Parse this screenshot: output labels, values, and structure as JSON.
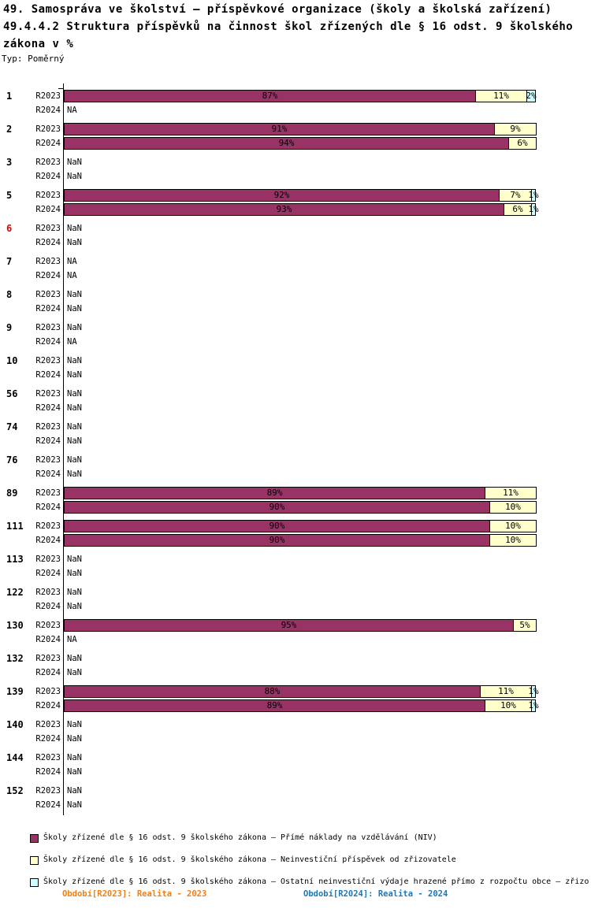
{
  "header": {
    "title_line1": "49. Samospráva ve školství – příspěvkové organizace (školy a školská zařízení)",
    "title_line2": "49.4.4.2 Struktura příspěvků na činnost škol zřízených dle § 16 odst. 9 školského",
    "title_line3": " zákona v %",
    "type_label": "Typ: Poměrný"
  },
  "chart_data": {
    "type": "bar",
    "orientation": "horizontal",
    "stacked": true,
    "value_unit": "%",
    "xlim": [
      0,
      100
    ],
    "grid": false,
    "period_labels": [
      "R2023",
      "R2024"
    ],
    "series": [
      {
        "name": "Školy zřízené dle § 16 odst. 9 školského zákona – Přímé náklady na vzdělávání (NIV)",
        "color": "#993366"
      },
      {
        "name": "Školy zřízené dle § 16 odst. 9 školského zákona – Neinvestiční příspěvek od zřizovatele",
        "color": "#FFFFCC"
      },
      {
        "name": "Školy zřízené dle § 16 odst. 9 školského zákona – Ostatní neinvestiční výdaje hrazené přímo z rozpočtu obce – zřizovatele",
        "color": "#CCFFFF"
      }
    ],
    "groups": [
      {
        "id": "1",
        "id_color": "#000000",
        "rows": [
          {
            "period": "R2023",
            "segments": [
              {
                "series": 0,
                "value": 87,
                "label": "87%"
              },
              {
                "series": 1,
                "value": 11,
                "label": "11%"
              },
              {
                "series": 2,
                "value": 2,
                "label": "2%"
              }
            ]
          },
          {
            "period": "R2024",
            "text": "NA"
          }
        ]
      },
      {
        "id": "2",
        "id_color": "#000000",
        "rows": [
          {
            "period": "R2023",
            "segments": [
              {
                "series": 0,
                "value": 91,
                "label": "91%"
              },
              {
                "series": 1,
                "value": 9,
                "label": "9%"
              }
            ]
          },
          {
            "period": "R2024",
            "segments": [
              {
                "series": 0,
                "value": 94,
                "label": "94%"
              },
              {
                "series": 1,
                "value": 6,
                "label": "6%"
              }
            ]
          }
        ]
      },
      {
        "id": "3",
        "id_color": "#000000",
        "rows": [
          {
            "period": "R2023",
            "text": "NaN"
          },
          {
            "period": "R2024",
            "text": "NaN"
          }
        ]
      },
      {
        "id": "5",
        "id_color": "#000000",
        "rows": [
          {
            "period": "R2023",
            "segments": [
              {
                "series": 0,
                "value": 92,
                "label": "92%"
              },
              {
                "series": 1,
                "value": 7,
                "label": "7%"
              },
              {
                "series": 2,
                "value": 1,
                "label": "1%"
              }
            ]
          },
          {
            "period": "R2024",
            "segments": [
              {
                "series": 0,
                "value": 93,
                "label": "93%"
              },
              {
                "series": 1,
                "value": 6,
                "label": "6%"
              },
              {
                "series": 2,
                "value": 1,
                "label": "1%"
              }
            ]
          }
        ]
      },
      {
        "id": "6",
        "id_color": "#E60000",
        "rows": [
          {
            "period": "R2023",
            "text": "NaN"
          },
          {
            "period": "R2024",
            "text": "NaN"
          }
        ]
      },
      {
        "id": "7",
        "id_color": "#000000",
        "rows": [
          {
            "period": "R2023",
            "text": "NA"
          },
          {
            "period": "R2024",
            "text": "NA"
          }
        ]
      },
      {
        "id": "8",
        "id_color": "#000000",
        "rows": [
          {
            "period": "R2023",
            "text": "NaN"
          },
          {
            "period": "R2024",
            "text": "NaN"
          }
        ]
      },
      {
        "id": "9",
        "id_color": "#000000",
        "rows": [
          {
            "period": "R2023",
            "text": "NaN"
          },
          {
            "period": "R2024",
            "text": "NA"
          }
        ]
      },
      {
        "id": "10",
        "id_color": "#000000",
        "rows": [
          {
            "period": "R2023",
            "text": "NaN"
          },
          {
            "period": "R2024",
            "text": "NaN"
          }
        ]
      },
      {
        "id": "56",
        "id_color": "#000000",
        "rows": [
          {
            "period": "R2023",
            "text": "NaN"
          },
          {
            "period": "R2024",
            "text": "NaN"
          }
        ]
      },
      {
        "id": "74",
        "id_color": "#000000",
        "rows": [
          {
            "period": "R2023",
            "text": "NaN"
          },
          {
            "period": "R2024",
            "text": "NaN"
          }
        ]
      },
      {
        "id": "76",
        "id_color": "#000000",
        "rows": [
          {
            "period": "R2023",
            "text": "NaN"
          },
          {
            "period": "R2024",
            "text": "NaN"
          }
        ]
      },
      {
        "id": "89",
        "id_color": "#000000",
        "rows": [
          {
            "period": "R2023",
            "segments": [
              {
                "series": 0,
                "value": 89,
                "label": "89%"
              },
              {
                "series": 1,
                "value": 11,
                "label": "11%"
              }
            ]
          },
          {
            "period": "R2024",
            "segments": [
              {
                "series": 0,
                "value": 90,
                "label": "90%"
              },
              {
                "series": 1,
                "value": 10,
                "label": "10%"
              }
            ]
          }
        ]
      },
      {
        "id": "111",
        "id_color": "#000000",
        "rows": [
          {
            "period": "R2023",
            "segments": [
              {
                "series": 0,
                "value": 90,
                "label": "90%"
              },
              {
                "series": 1,
                "value": 10,
                "label": "10%"
              }
            ]
          },
          {
            "period": "R2024",
            "segments": [
              {
                "series": 0,
                "value": 90,
                "label": "90%"
              },
              {
                "series": 1,
                "value": 10,
                "label": "10%"
              }
            ]
          }
        ]
      },
      {
        "id": "113",
        "id_color": "#000000",
        "rows": [
          {
            "period": "R2023",
            "text": "NaN"
          },
          {
            "period": "R2024",
            "text": "NaN"
          }
        ]
      },
      {
        "id": "122",
        "id_color": "#000000",
        "rows": [
          {
            "period": "R2023",
            "text": "NaN"
          },
          {
            "period": "R2024",
            "text": "NaN"
          }
        ]
      },
      {
        "id": "130",
        "id_color": "#000000",
        "rows": [
          {
            "period": "R2023",
            "segments": [
              {
                "series": 0,
                "value": 95,
                "label": "95%"
              },
              {
                "series": 1,
                "value": 5,
                "label": "5%"
              }
            ]
          },
          {
            "period": "R2024",
            "text": "NA"
          }
        ]
      },
      {
        "id": "132",
        "id_color": "#000000",
        "rows": [
          {
            "period": "R2023",
            "text": "NaN"
          },
          {
            "period": "R2024",
            "text": "NaN"
          }
        ]
      },
      {
        "id": "139",
        "id_color": "#000000",
        "rows": [
          {
            "period": "R2023",
            "segments": [
              {
                "series": 0,
                "value": 88,
                "label": "88%"
              },
              {
                "series": 1,
                "value": 11,
                "label": "11%"
              },
              {
                "series": 2,
                "value": 1,
                "label": "1%"
              }
            ]
          },
          {
            "period": "R2024",
            "segments": [
              {
                "series": 0,
                "value": 89,
                "label": "89%"
              },
              {
                "series": 1,
                "value": 10,
                "label": "10%"
              },
              {
                "series": 2,
                "value": 1,
                "label": "1%"
              }
            ]
          }
        ]
      },
      {
        "id": "140",
        "id_color": "#000000",
        "rows": [
          {
            "period": "R2023",
            "text": "NaN"
          },
          {
            "period": "R2024",
            "text": "NaN"
          }
        ]
      },
      {
        "id": "144",
        "id_color": "#000000",
        "rows": [
          {
            "period": "R2023",
            "text": "NaN"
          },
          {
            "period": "R2024",
            "text": "NaN"
          }
        ]
      },
      {
        "id": "152",
        "id_color": "#000000",
        "rows": [
          {
            "period": "R2023",
            "text": "NaN"
          },
          {
            "period": "R2024",
            "text": "NaN"
          }
        ]
      }
    ]
  },
  "legend": {
    "items": [
      {
        "color": "#993366",
        "label": "Školy zřízené dle § 16 odst. 9 školského zákona – Přímé náklady na vzdělávání (NIV)"
      },
      {
        "color": "#FFFFCC",
        "label": "Školy zřízené dle § 16 odst. 9 školského zákona  – Neinvestiční příspěvek od zřizovatele"
      },
      {
        "color": "#CCFFFF",
        "label": "Školy zřízené dle § 16 odst. 9 školského zákona – Ostatní neinvestiční výdaje hrazené přímo z rozpočtu obce – zřizo"
      }
    ]
  },
  "footer": {
    "period_2023": {
      "label": "Období[R2023]: Realita - 2023",
      "color": "#F08019"
    },
    "period_2024": {
      "label": "Období[R2024]: Realita - 2024",
      "color": "#1F77B4"
    }
  }
}
